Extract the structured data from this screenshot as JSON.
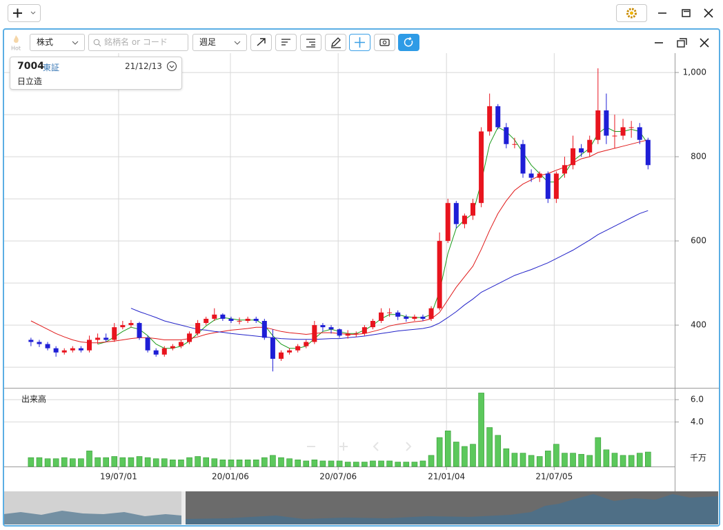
{
  "toolbar": {
    "hot": "Hot",
    "market": "株式",
    "search_placeholder": "銘柄名 or コード",
    "period": "週足"
  },
  "info": {
    "code": "7004",
    "exchange": "東証",
    "date": "21/12/13",
    "name": "日立造"
  },
  "chart_data": [
    {
      "type": "candlestick",
      "up_color": "#e8141e",
      "down_color": "#1e1ed6",
      "open": [
        365,
        360,
        355,
        345,
        335,
        340,
        345,
        340,
        365,
        370,
        365,
        395,
        400,
        405,
        370,
        340,
        330,
        345,
        350,
        360,
        380,
        405,
        415,
        425,
        415,
        410,
        410,
        415,
        410,
        370,
        320,
        335,
        340,
        350,
        360,
        400,
        395,
        390,
        375,
        380,
        380,
        395,
        410,
        430,
        430,
        420,
        415,
        420,
        415,
        440,
        600,
        690,
        640,
        660,
        690,
        860,
        920,
        870,
        830,
        830,
        760,
        750,
        760,
        700,
        760,
        780,
        820,
        810,
        840,
        910,
        850,
        850,
        870,
        870,
        840
      ],
      "high": [
        370,
        365,
        360,
        350,
        345,
        350,
        350,
        375,
        380,
        380,
        405,
        410,
        412,
        408,
        375,
        345,
        350,
        355,
        365,
        385,
        412,
        420,
        440,
        428,
        420,
        418,
        420,
        420,
        415,
        390,
        340,
        345,
        355,
        365,
        410,
        405,
        400,
        392,
        388,
        385,
        400,
        415,
        440,
        440,
        435,
        425,
        425,
        425,
        445,
        620,
        700,
        695,
        665,
        700,
        870,
        950,
        925,
        880,
        845,
        840,
        770,
        765,
        765,
        765,
        800,
        850,
        830,
        850,
        1010,
        950,
        900,
        890,
        885,
        880,
        845
      ],
      "low": [
        350,
        348,
        340,
        325,
        330,
        335,
        335,
        335,
        355,
        360,
        360,
        390,
        395,
        365,
        335,
        325,
        325,
        340,
        345,
        355,
        375,
        400,
        410,
        410,
        405,
        402,
        405,
        405,
        365,
        290,
        315,
        330,
        335,
        345,
        355,
        385,
        380,
        370,
        368,
        372,
        375,
        390,
        405,
        420,
        412,
        408,
        410,
        410,
        410,
        435,
        595,
        630,
        630,
        650,
        680,
        850,
        865,
        820,
        820,
        750,
        740,
        740,
        690,
        690,
        750,
        770,
        800,
        800,
        830,
        830,
        820,
        840,
        845,
        830,
        770
      ],
      "close": [
        360,
        355,
        345,
        335,
        340,
        345,
        340,
        365,
        370,
        365,
        395,
        400,
        405,
        370,
        340,
        330,
        345,
        350,
        360,
        380,
        405,
        415,
        425,
        415,
        410,
        410,
        415,
        410,
        370,
        320,
        335,
        340,
        350,
        360,
        400,
        395,
        390,
        375,
        380,
        380,
        395,
        410,
        430,
        430,
        420,
        415,
        420,
        415,
        440,
        600,
        690,
        640,
        660,
        690,
        860,
        920,
        870,
        830,
        830,
        760,
        750,
        760,
        700,
        760,
        780,
        820,
        810,
        840,
        910,
        850,
        850,
        870,
        870,
        840,
        780
      ],
      "moving_averages": [
        {
          "color": "#1a9a1a",
          "values": [
            null,
            null,
            null,
            null,
            null,
            null,
            null,
            null,
            355,
            360,
            372,
            385,
            395,
            390,
            375,
            355,
            345,
            345,
            350,
            362,
            380,
            398,
            412,
            418,
            415,
            412,
            412,
            412,
            400,
            375,
            355,
            345,
            345,
            350,
            368,
            385,
            390,
            385,
            380,
            380,
            388,
            400,
            415,
            425,
            425,
            420,
            418,
            418,
            425,
            480,
            570,
            630,
            650,
            665,
            740,
            830,
            870,
            860,
            840,
            810,
            780,
            760,
            740,
            740,
            760,
            790,
            805,
            820,
            855,
            870,
            860,
            860,
            865,
            860,
            830
          ]
        },
        {
          "color": "#e01818",
          "values": [
            410,
            400,
            390,
            380,
            372,
            365,
            360,
            358,
            358,
            360,
            362,
            365,
            368,
            370,
            370,
            368,
            365,
            365,
            365,
            368,
            372,
            378,
            382,
            385,
            388,
            390,
            392,
            395,
            395,
            390,
            385,
            382,
            380,
            378,
            380,
            382,
            382,
            380,
            378,
            378,
            380,
            385,
            390,
            398,
            402,
            405,
            408,
            410,
            415,
            430,
            460,
            490,
            515,
            540,
            580,
            625,
            665,
            695,
            720,
            735,
            745,
            755,
            760,
            768,
            775,
            785,
            795,
            800,
            810,
            815,
            820,
            825,
            830,
            835,
            840
          ]
        },
        {
          "color": "#2020c8",
          "values": [
            null,
            null,
            null,
            null,
            null,
            null,
            null,
            null,
            null,
            null,
            null,
            null,
            440,
            432,
            425,
            418,
            410,
            405,
            400,
            395,
            390,
            388,
            385,
            383,
            380,
            378,
            376,
            374,
            372,
            370,
            368,
            367,
            366,
            366,
            366,
            367,
            368,
            368,
            370,
            372,
            374,
            377,
            380,
            383,
            386,
            388,
            390,
            392,
            396,
            405,
            418,
            432,
            448,
            462,
            478,
            488,
            498,
            508,
            518,
            525,
            532,
            540,
            548,
            558,
            568,
            578,
            590,
            602,
            615,
            625,
            635,
            645,
            655,
            665,
            672
          ]
        }
      ],
      "ylim": [
        251,
        1046
      ],
      "yticks": [
        400,
        600,
        800,
        {
          "value": 1000,
          "label": "1,000"
        }
      ],
      "minor_yticks": [
        300,
        500,
        700,
        900
      ],
      "grid": true
    },
    {
      "type": "bar",
      "title": "出来高",
      "color": "#5cc85c",
      "unit_label": "千万",
      "values": [
        0.8,
        0.8,
        0.7,
        0.7,
        0.8,
        0.7,
        0.7,
        1.4,
        0.8,
        0.8,
        0.9,
        0.8,
        0.8,
        0.9,
        0.8,
        0.7,
        0.7,
        0.6,
        0.6,
        0.8,
        0.9,
        0.8,
        0.7,
        0.6,
        0.6,
        0.6,
        0.6,
        0.6,
        0.8,
        1.0,
        0.8,
        0.7,
        0.6,
        0.5,
        0.6,
        0.5,
        0.5,
        0.5,
        0.4,
        0.4,
        0.4,
        0.5,
        0.5,
        0.5,
        0.4,
        0.4,
        0.4,
        0.5,
        1.0,
        2.6,
        3.2,
        2.2,
        1.8,
        2.0,
        6.6,
        3.5,
        2.8,
        1.6,
        1.2,
        1.2,
        1.0,
        0.9,
        1.4,
        2.0,
        1.2,
        1.2,
        1.1,
        1.0,
        2.6,
        1.5,
        1.2,
        1.0,
        1.0,
        1.2,
        1.3
      ],
      "ylim": [
        0,
        7
      ],
      "yticks": [
        {
          "value": 4,
          "label": "4.0"
        },
        {
          "value": 6,
          "label": "6.0"
        }
      ],
      "xlim": [
        -3.3,
        77.2
      ],
      "xticks": [
        {
          "value": 10.51,
          "label": "19/07/01"
        },
        {
          "value": 23.92,
          "label": "20/01/06"
        },
        {
          "value": 36.84,
          "label": "20/07/06"
        },
        {
          "value": 49.83,
          "label": "21/01/04"
        },
        {
          "value": 62.75,
          "label": "21/07/05"
        }
      ]
    }
  ]
}
